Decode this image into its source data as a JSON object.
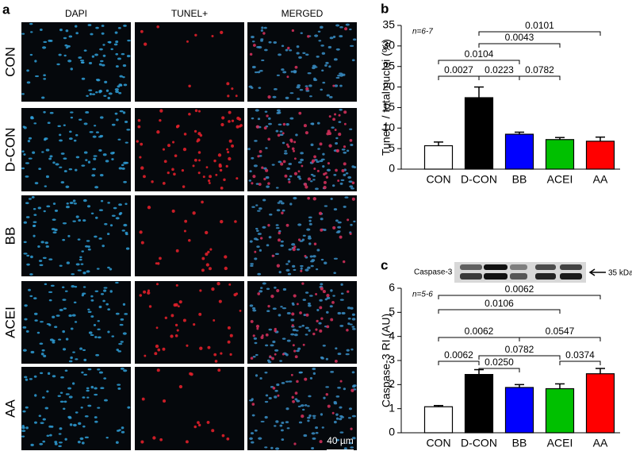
{
  "panel_a": {
    "panel_label": "a",
    "columns": [
      "DAPI",
      "TUNEL+",
      "MERGED"
    ],
    "rows": [
      "CON",
      "D-CON",
      "BB",
      "ACEI",
      "AA"
    ],
    "scale_bar": "40 µm"
  },
  "chart_data": [
    {
      "type": "bar",
      "panel_label": "b",
      "ylabel": "Tunel+ / total nuclei (%)",
      "annotation": "n=6-7",
      "categories": [
        "CON",
        "D-CON",
        "BB",
        "ACEI",
        "AA"
      ],
      "values": [
        5.7,
        17.4,
        8.5,
        7.2,
        6.8
      ],
      "errors": [
        0.9,
        2.6,
        0.5,
        0.5,
        1.0
      ],
      "colors": [
        "#ffffff",
        "#000000",
        "#0000ff",
        "#00c000",
        "#ff0000"
      ],
      "ylim": [
        0,
        35
      ],
      "yticks": [
        0,
        5,
        10,
        15,
        20,
        25,
        30,
        35
      ],
      "comparisons": [
        {
          "groups": [
            "CON",
            "D-CON"
          ],
          "label": "0.0027"
        },
        {
          "groups": [
            "D-CON",
            "BB"
          ],
          "label": "0.0223"
        },
        {
          "groups": [
            "BB",
            "ACEI"
          ],
          "label": "0.0782"
        },
        {
          "groups": [
            "CON",
            "BB"
          ],
          "label": "0.0104"
        },
        {
          "groups": [
            "D-CON",
            "ACEI"
          ],
          "label": "0.0043"
        },
        {
          "groups": [
            "D-CON",
            "AA"
          ],
          "label": "0.0101"
        }
      ]
    },
    {
      "type": "bar",
      "panel_label": "c",
      "ylabel": "Caspase-3 RI (AU)",
      "annotation": "n=5-6",
      "blot": {
        "label": "Caspase-3",
        "marker": "35 kDa"
      },
      "categories": [
        "CON",
        "D-CON",
        "BB",
        "ACEI",
        "AA"
      ],
      "values": [
        1.08,
        2.42,
        1.88,
        1.83,
        2.45
      ],
      "errors": [
        0.05,
        0.2,
        0.12,
        0.2,
        0.22
      ],
      "colors": [
        "#ffffff",
        "#000000",
        "#0000ff",
        "#00c000",
        "#ff0000"
      ],
      "ylim": [
        0,
        6
      ],
      "yticks": [
        0,
        1,
        2,
        3,
        4,
        5,
        6
      ],
      "comparisons": [
        {
          "groups": [
            "CON",
            "D-CON"
          ],
          "label": "0.0062"
        },
        {
          "groups": [
            "D-CON",
            "BB"
          ],
          "label": "0.0250"
        },
        {
          "groups": [
            "D-CON",
            "ACEI"
          ],
          "label": "0.0782"
        },
        {
          "groups": [
            "ACEI",
            "AA"
          ],
          "label": "0.0374"
        },
        {
          "groups": [
            "CON",
            "BB"
          ],
          "label": "0.0062"
        },
        {
          "groups": [
            "BB",
            "AA"
          ],
          "label": "0.0547"
        },
        {
          "groups": [
            "CON",
            "ACEI"
          ],
          "label": "0.0106"
        },
        {
          "groups": [
            "CON",
            "AA"
          ],
          "label": "0.0062"
        }
      ]
    }
  ]
}
